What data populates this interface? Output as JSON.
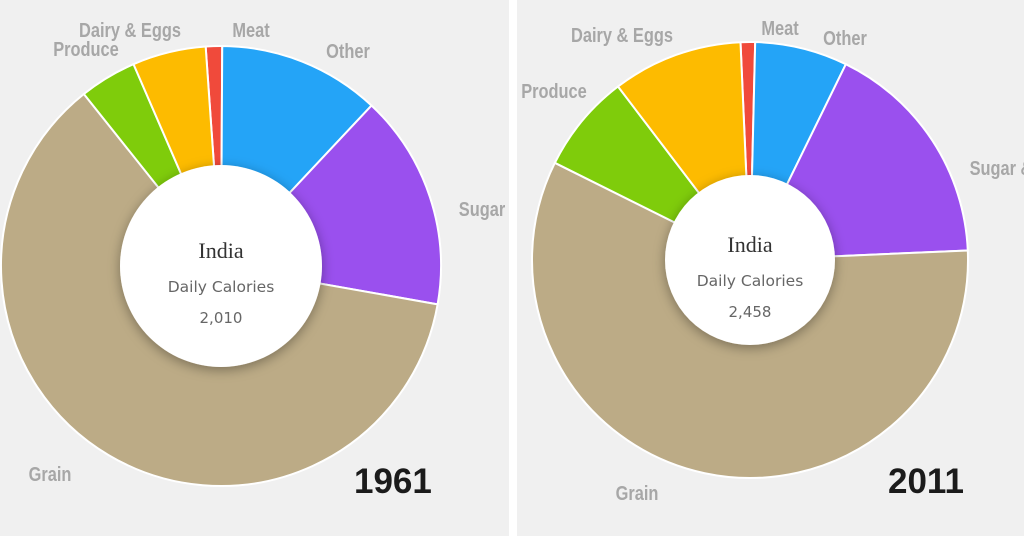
{
  "chart_data": [
    {
      "type": "pie",
      "title": "India",
      "subtitle": "Daily Calories",
      "total_label": "2,010",
      "total": 2010,
      "year": "1961",
      "categories": [
        "Meat",
        "Other",
        "Sugar",
        "Grain",
        "Produce",
        "Dairy & Eggs"
      ],
      "values": [
        1.2,
        11.9,
        15.8,
        61.5,
        4.2,
        5.4
      ],
      "colors": [
        "#f04a3b",
        "#24a4f7",
        "#9a50ee",
        "#bcab86",
        "#7fcc0b",
        "#fdbb00"
      ]
    },
    {
      "type": "pie",
      "title": "India",
      "subtitle": "Daily Calories",
      "total_label": "2,458",
      "total": 2458,
      "year": "2011",
      "categories": [
        "Meat",
        "Other",
        "Sugar &",
        "Grain",
        "Produce",
        "Dairy & Eggs"
      ],
      "values": [
        1.0,
        6.4,
        15.9,
        54.1,
        6.8,
        9.0
      ],
      "colors": [
        "#f04a3b",
        "#24a4f7",
        "#9a50ee",
        "#bcab86",
        "#7fcc0b",
        "#fdbb00"
      ]
    }
  ]
}
